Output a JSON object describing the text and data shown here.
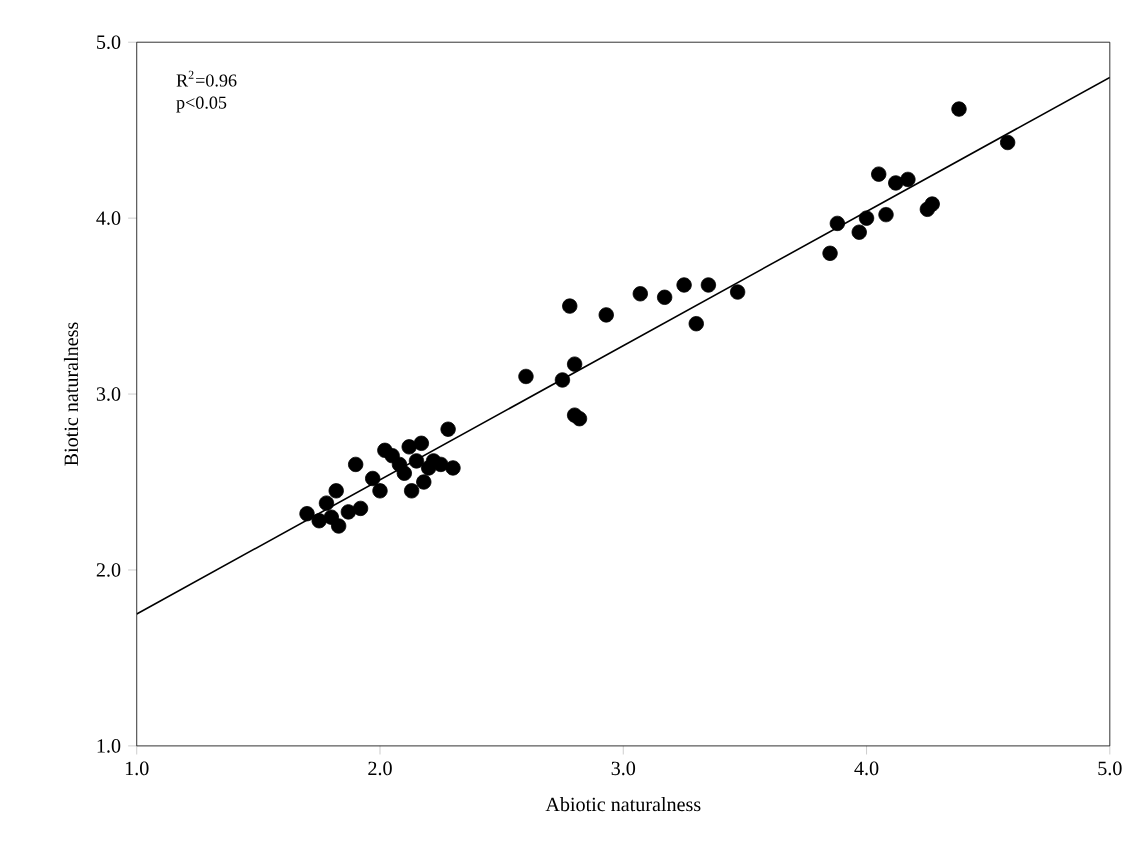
{
  "chart_data": {
    "type": "scatter",
    "xlabel": "Abiotic naturalness",
    "ylabel": "Biotic naturalness",
    "annotations": [
      "R$^{2}$=0.96",
      "p<0.05"
    ],
    "xlim": [
      1.0,
      5.0
    ],
    "ylim": [
      1.0,
      5.0
    ],
    "xticks": [
      {
        "value": 1,
        "label": "1.0"
      },
      {
        "value": 2,
        "label": "2.0"
      },
      {
        "value": 3,
        "label": "3.0"
      },
      {
        "value": 4,
        "label": "4.0"
      },
      {
        "value": 5,
        "label": "5.0"
      }
    ],
    "yticks": [
      {
        "value": 1,
        "label": "1.0"
      },
      {
        "value": 2,
        "label": "2.0"
      },
      {
        "value": 3,
        "label": "3.0"
      },
      {
        "value": 4,
        "label": "4.0"
      },
      {
        "value": 5,
        "label": "5.0"
      }
    ],
    "grid": false,
    "series": [
      {
        "marker": "circle",
        "color": "#000000",
        "x": [
          1.7,
          1.75,
          1.78,
          1.8,
          1.82,
          1.83,
          1.87,
          1.9,
          1.92,
          1.97,
          2.0,
          2.02,
          2.05,
          2.08,
          2.1,
          2.12,
          2.13,
          2.15,
          2.17,
          2.18,
          2.2,
          2.22,
          2.25,
          2.28,
          2.3,
          2.6,
          2.75,
          2.78,
          2.8,
          2.8,
          2.82,
          2.93,
          3.07,
          3.17,
          3.25,
          3.3,
          3.35,
          3.47,
          3.85,
          3.88,
          3.97,
          4.0,
          4.05,
          4.08,
          4.12,
          4.17,
          4.25,
          4.27,
          4.38,
          4.58
        ],
        "values": [
          2.32,
          2.28,
          2.38,
          2.3,
          2.45,
          2.25,
          2.33,
          2.6,
          2.35,
          2.52,
          2.45,
          2.68,
          2.65,
          2.6,
          2.55,
          2.7,
          2.45,
          2.62,
          2.72,
          2.5,
          2.58,
          2.62,
          2.6,
          2.8,
          2.58,
          3.1,
          3.08,
          3.5,
          3.17,
          2.88,
          2.86,
          3.45,
          3.57,
          3.55,
          3.62,
          3.4,
          3.62,
          3.58,
          3.8,
          3.97,
          3.92,
          4.0,
          4.25,
          4.02,
          4.2,
          4.22,
          4.05,
          4.08,
          4.62,
          4.43
        ]
      },
      {
        "type": "line",
        "marker": "none",
        "color": "#000000",
        "line_style": "solid",
        "x": [
          1.0,
          5.0
        ],
        "values": [
          1.75,
          4.8
        ]
      }
    ]
  }
}
